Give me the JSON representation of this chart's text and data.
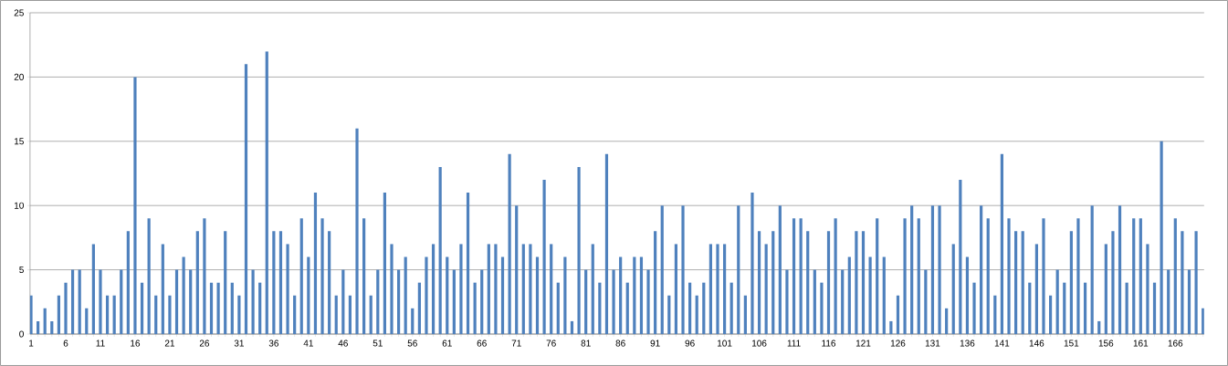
{
  "chart_data": {
    "type": "bar",
    "categories": [
      "1",
      null,
      null,
      null,
      null,
      "6",
      null,
      null,
      null,
      null,
      "11",
      null,
      null,
      null,
      null,
      "16",
      null,
      null,
      null,
      null,
      "21",
      null,
      null,
      null,
      null,
      "26",
      null,
      null,
      null,
      null,
      "31",
      null,
      null,
      null,
      null,
      "36",
      null,
      null,
      null,
      null,
      "41",
      null,
      null,
      null,
      null,
      "46",
      null,
      null,
      null,
      null,
      "51",
      null,
      null,
      null,
      null,
      "56",
      null,
      null,
      null,
      null,
      "61",
      null,
      null,
      null,
      null,
      "66",
      null,
      null,
      null,
      null,
      "71",
      null,
      null,
      null,
      null,
      "76",
      null,
      null,
      null,
      null,
      "81",
      null,
      null,
      null,
      null,
      "86",
      null,
      null,
      null,
      null,
      "91",
      null,
      null,
      null,
      null,
      "96",
      null,
      null,
      null,
      null,
      "101",
      null,
      null,
      null,
      null,
      "106",
      null,
      null,
      null,
      null,
      "111",
      null,
      null,
      null,
      null,
      "116",
      null,
      null,
      null,
      null,
      "121",
      null,
      null,
      null,
      null,
      "126",
      null,
      null,
      null,
      null,
      "131",
      null,
      null,
      null,
      null,
      "136",
      null,
      null,
      null,
      null,
      "141",
      null,
      null,
      null,
      null,
      "146",
      null,
      null,
      null,
      null,
      "151",
      null,
      null,
      null,
      null,
      "156",
      null,
      null,
      null,
      null,
      "161",
      null,
      null,
      null,
      null,
      "166",
      null,
      null,
      null,
      null
    ],
    "values": [
      3,
      1,
      2,
      1,
      3,
      4,
      5,
      5,
      2,
      7,
      5,
      3,
      3,
      5,
      8,
      20,
      4,
      9,
      3,
      7,
      3,
      5,
      6,
      5,
      8,
      9,
      4,
      4,
      8,
      4,
      3,
      21,
      5,
      4,
      22,
      8,
      8,
      7,
      3,
      9,
      6,
      11,
      9,
      8,
      3,
      5,
      3,
      16,
      9,
      3,
      5,
      11,
      7,
      5,
      6,
      2,
      4,
      6,
      7,
      13,
      6,
      5,
      7,
      11,
      4,
      5,
      7,
      7,
      6,
      14,
      10,
      7,
      7,
      6,
      12,
      7,
      4,
      6,
      1,
      13,
      5,
      7,
      4,
      14,
      5,
      6,
      4,
      6,
      6,
      5,
      8,
      10,
      3,
      7,
      10,
      4,
      3,
      4,
      7,
      7,
      7,
      4,
      10,
      3,
      11,
      8,
      7,
      8,
      10,
      5,
      9,
      9,
      8,
      5,
      4,
      8,
      9,
      5,
      6,
      8,
      8,
      6,
      9,
      6,
      1,
      3,
      9,
      10,
      9,
      5,
      10,
      10,
      2,
      7,
      12,
      6,
      4,
      10,
      9,
      3,
      14,
      9,
      8,
      8,
      4,
      7,
      9,
      3,
      5,
      4,
      8,
      9,
      4,
      10,
      1,
      7,
      8,
      10,
      4,
      9,
      9,
      7,
      4,
      15,
      5,
      9,
      8,
      5,
      8,
      2
    ],
    "color": "#4f81bd",
    "ylim": [
      0,
      25
    ],
    "yticks": [
      0,
      5,
      10,
      15,
      20,
      25
    ],
    "grid": "y"
  }
}
